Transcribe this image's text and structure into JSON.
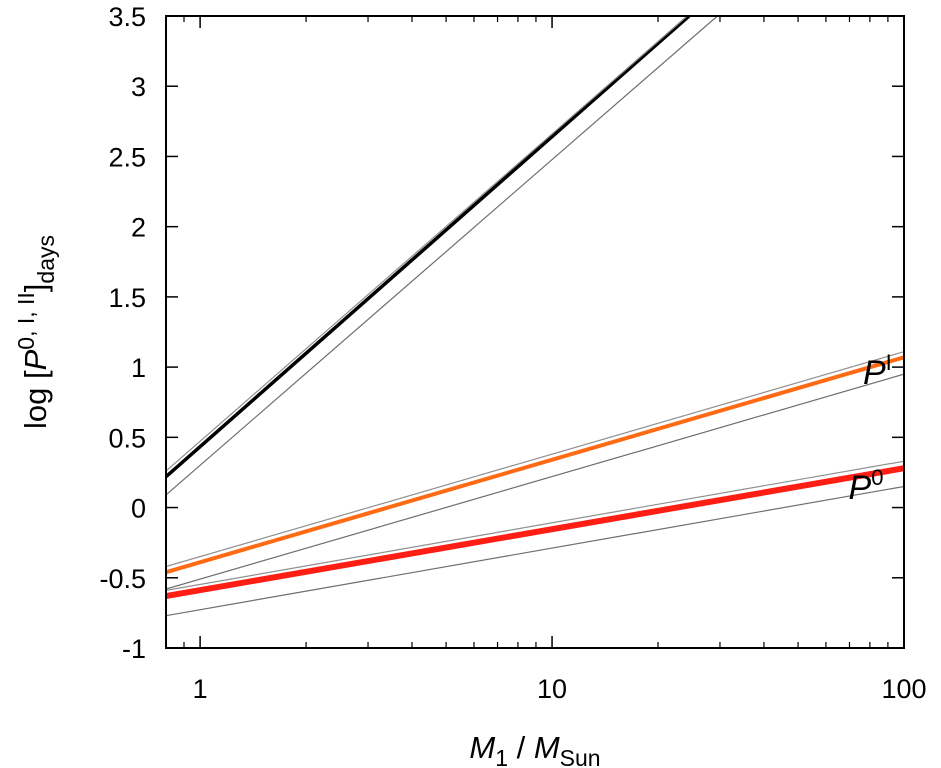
{
  "chart_data": {
    "type": "line",
    "xscale": "log",
    "xlim": [
      0.8,
      100
    ],
    "ylim": [
      -1,
      3.5
    ],
    "grid": false,
    "legend": "none",
    "xticks": [
      {
        "value": 1,
        "label": "1"
      },
      {
        "value": 10,
        "label": "10"
      },
      {
        "value": 100,
        "label": "100"
      }
    ],
    "yticks": [
      {
        "value": 3.5,
        "label": "3.5"
      },
      {
        "value": 3,
        "label": "3"
      },
      {
        "value": 2.5,
        "label": "2.5"
      },
      {
        "value": 2,
        "label": "2"
      },
      {
        "value": 1.5,
        "label": "1.5"
      },
      {
        "value": 1,
        "label": "1"
      },
      {
        "value": 0.5,
        "label": "0.5"
      },
      {
        "value": 0,
        "label": "0"
      },
      {
        "value": -0.5,
        "label": "-0.5"
      },
      {
        "value": -1,
        "label": "-1"
      }
    ],
    "xlabel": {
      "var": "M",
      "var_sub": "1",
      "sep": " / ",
      "ref": "M",
      "ref_sub": "Sun"
    },
    "ylabel": {
      "prefix": "log [",
      "var": "P",
      "sup": "0, I, II",
      "suffix": "]",
      "sub": "days"
    },
    "series": [
      {
        "color": "#000000",
        "width": 3.5,
        "x": [
          0.8,
          24.5
        ],
        "y": [
          0.22,
          3.5
        ]
      },
      {
        "color": "#909090",
        "width": 1.2,
        "x": [
          0.8,
          24.2
        ],
        "y": [
          0.26,
          3.5
        ]
      },
      {
        "color": "#6e6e6e",
        "width": 1.2,
        "x": [
          0.8,
          29.5
        ],
        "y": [
          0.09,
          3.5
        ]
      },
      {
        "color": "#ff6a14",
        "width": 4,
        "x": [
          0.8,
          100
        ],
        "y": [
          -0.46,
          1.07
        ]
      },
      {
        "color": "#909090",
        "width": 1.2,
        "x": [
          0.8,
          100
        ],
        "y": [
          -0.42,
          1.11
        ]
      },
      {
        "color": "#6e6e6e",
        "width": 1.2,
        "x": [
          0.8,
          100
        ],
        "y": [
          -0.58,
          0.95
        ]
      },
      {
        "color": "#ff1e14",
        "width": 6,
        "x": [
          0.8,
          100
        ],
        "y": [
          -0.63,
          0.28
        ]
      },
      {
        "color": "#909090",
        "width": 1.2,
        "x": [
          0.8,
          100
        ],
        "y": [
          -0.59,
          0.33
        ]
      },
      {
        "color": "#6e6e6e",
        "width": 1.2,
        "x": [
          0.8,
          100
        ],
        "y": [
          -0.77,
          0.15
        ]
      }
    ],
    "annotations": [
      {
        "var": "P",
        "sup": "I",
        "x": 84,
        "y": 0.88
      },
      {
        "var": "P",
        "sup": "0",
        "x": 78,
        "y": 0.06
      }
    ]
  }
}
